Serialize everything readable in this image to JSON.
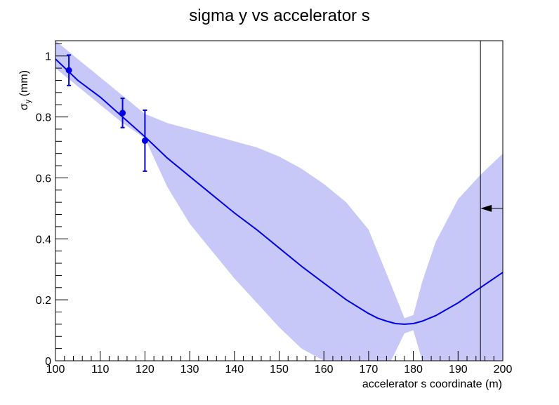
{
  "chart_data": {
    "type": "line",
    "title": "sigma y vs accelerator s",
    "xlabel": "accelerator s coordinate (m)",
    "ylabel": {
      "main": "σ",
      "sub": "y",
      "unit": "(mm)"
    },
    "xlim": [
      100,
      200
    ],
    "ylim": [
      0,
      1.05
    ],
    "x_ticks": [
      "100",
      "110",
      "120",
      "130",
      "140",
      "150",
      "160",
      "170",
      "180",
      "190",
      "200"
    ],
    "y_ticks": [
      "0",
      "0.2",
      "0.4",
      "0.6",
      "0.8",
      "1"
    ],
    "grid": false,
    "colors": {
      "fit_line": "#0000e6",
      "band": "#c8c8f8",
      "points": "#0000e6",
      "axis": "#000000"
    },
    "points": [
      {
        "x": 103,
        "y": 0.953,
        "yerr": 0.05
      },
      {
        "x": 115,
        "y": 0.813,
        "yerr": 0.048
      },
      {
        "x": 120,
        "y": 0.722,
        "yerr": 0.1
      }
    ],
    "fit_curve": {
      "x": [
        100,
        105,
        110,
        115,
        120,
        125,
        130,
        135,
        140,
        145,
        150,
        155,
        160,
        165,
        170,
        172,
        174,
        176,
        178,
        180,
        182,
        185,
        190,
        195,
        200
      ],
      "y": [
        0.99,
        0.92,
        0.865,
        0.8,
        0.735,
        0.665,
        0.605,
        0.545,
        0.485,
        0.43,
        0.37,
        0.31,
        0.255,
        0.2,
        0.155,
        0.14,
        0.13,
        0.122,
        0.12,
        0.122,
        0.13,
        0.148,
        0.19,
        0.24,
        0.29
      ]
    },
    "confidence_band": {
      "x": [
        100,
        105,
        110,
        115,
        120,
        125,
        130,
        135,
        140,
        145,
        150,
        155,
        160,
        165,
        170,
        175,
        178,
        180,
        182,
        185,
        190,
        195,
        200
      ],
      "upper": [
        1.05,
        0.99,
        0.93,
        0.87,
        0.81,
        0.78,
        0.76,
        0.74,
        0.72,
        0.7,
        0.67,
        0.63,
        0.58,
        0.52,
        0.43,
        0.25,
        0.14,
        0.15,
        0.26,
        0.39,
        0.53,
        0.61,
        0.68
      ],
      "lower": [
        0.96,
        0.9,
        0.84,
        0.78,
        0.73,
        0.57,
        0.45,
        0.36,
        0.27,
        0.19,
        0.11,
        0.04,
        0.0,
        0.0,
        0.0,
        0.0,
        0.09,
        0.1,
        0.0,
        0.0,
        0.0,
        0.0,
        0.0
      ]
    },
    "marker_line": {
      "x": 195
    },
    "arrow": {
      "x_from": 200,
      "x_to": 195,
      "y": 0.5
    }
  }
}
